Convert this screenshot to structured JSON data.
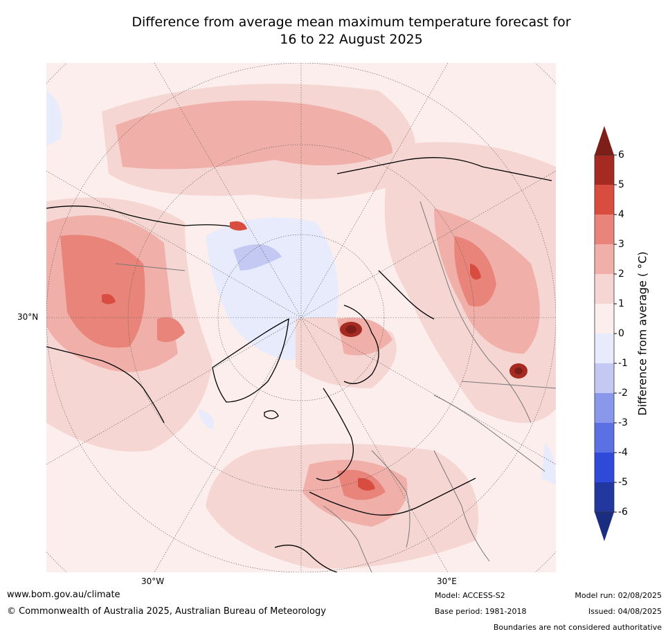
{
  "title": {
    "line1": "Difference from average mean maximum temperature forecast for",
    "line2": "16 to 22 August 2025"
  },
  "map": {
    "projection": "north polar stereographic",
    "lat_label": "30°N",
    "lon_labels": [
      "30°W",
      "30°E"
    ]
  },
  "colorbar": {
    "label": "Difference from average ( °C)",
    "ticks": [
      "6",
      "5",
      "4",
      "3",
      "2",
      "1",
      "0",
      "-1",
      "-2",
      "-3",
      "-4",
      "-5",
      "-6"
    ],
    "colors": [
      "#7d1f18",
      "#a52a22",
      "#d94d40",
      "#e8847a",
      "#f0b0a9",
      "#f5d6d2",
      "#fbeeec",
      "#e8ebfb",
      "#c3c9f2",
      "#8a98ec",
      "#5a70e3",
      "#2f4ad8",
      "#22389e",
      "#1a2d80"
    ]
  },
  "footer": {
    "website": "www.bom.gov.au/climate",
    "copyright": "© Commonwealth of Australia 2025, Australian Bureau of Meteorology",
    "model": "Model: ACCESS-S2",
    "base_period": "Base period: 1981-2018",
    "model_run": "Model run: 02/08/2025",
    "issued": "Issued: 04/08/2025",
    "disclaimer": "Boundaries are not considered authoritative"
  }
}
